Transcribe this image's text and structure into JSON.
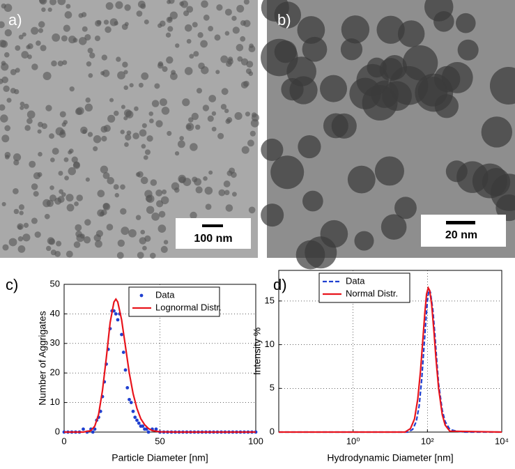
{
  "panels": [
    {
      "label": "a)",
      "scale_bar": "100 nm"
    },
    {
      "label": "b)",
      "scale_bar": "20 nm"
    }
  ],
  "chart_data": [
    {
      "type": "line",
      "panel_label": "c)",
      "xlabel": "Particle Diameter [nm]",
      "ylabel": "Number of Aggrigates",
      "xlim": [
        0,
        100
      ],
      "ylim": [
        0,
        50
      ],
      "xticks": [
        0,
        50,
        100
      ],
      "yticks": [
        0,
        10,
        20,
        30,
        40,
        50
      ],
      "grid": true,
      "legend": "upper right",
      "series": [
        {
          "name": "Data",
          "color": "#1f3fd0",
          "style": "markers",
          "x": [
            0,
            2,
            4,
            6,
            8,
            10,
            12,
            14,
            15,
            16,
            17,
            18,
            19,
            20,
            21,
            22,
            23,
            24,
            25,
            26,
            27,
            28,
            29,
            30,
            31,
            32,
            33,
            34,
            35,
            36,
            37,
            38,
            39,
            40,
            41,
            42,
            43,
            44,
            46,
            48,
            50,
            52,
            54,
            56,
            58,
            60,
            62,
            64,
            66,
            68,
            70,
            72,
            74,
            76,
            78,
            80,
            82,
            84,
            86,
            88,
            90,
            92,
            94,
            96,
            98,
            100
          ],
          "values": [
            0,
            0,
            0,
            0,
            0,
            1,
            0,
            1,
            0,
            1,
            4,
            5,
            7,
            12,
            17,
            23,
            28,
            35,
            41,
            41,
            40,
            38,
            40,
            33,
            27,
            21,
            15,
            11,
            10,
            7,
            5,
            4,
            3,
            2,
            2,
            1,
            1,
            0,
            1,
            1,
            0,
            0,
            0,
            0,
            0,
            0,
            0,
            0,
            0,
            0,
            0,
            0,
            0,
            0,
            0,
            0,
            0,
            0,
            0,
            0,
            0,
            0,
            0,
            0,
            0,
            0
          ]
        },
        {
          "name": "Lognormal Distr.",
          "color": "#e8141c",
          "style": "solid",
          "x": [
            0,
            10,
            14,
            16,
            18,
            20,
            22,
            24,
            26,
            27,
            28,
            30,
            32,
            34,
            36,
            38,
            40,
            42,
            44,
            46,
            50,
            60,
            100
          ],
          "values": [
            0,
            0,
            0.5,
            2,
            6,
            14,
            25,
            37,
            44,
            45,
            44,
            38,
            29,
            20,
            13,
            8,
            4.5,
            2.5,
            1.2,
            0.5,
            0.1,
            0,
            0
          ]
        }
      ]
    },
    {
      "type": "line",
      "panel_label": "d)",
      "xlabel": "Hydrodynamic Diameter [nm]",
      "ylabel": "Intensity %",
      "xscale": "log",
      "xlim": [
        0.01,
        10000
      ],
      "ylim": [
        0,
        18.5
      ],
      "xticks": [
        {
          "value": 1,
          "label": "10⁰"
        },
        {
          "value": 100,
          "label": "10²"
        },
        {
          "value": 10000,
          "label": "10⁴"
        }
      ],
      "yticks": [
        0,
        5,
        10,
        15
      ],
      "grid": true,
      "legend": "upper left",
      "series": [
        {
          "name": "Data",
          "color": "#1f3fd0",
          "style": "dashed",
          "x": [
            0.01,
            1,
            10,
            30,
            40,
            50,
            60,
            70,
            80,
            90,
            100,
            110,
            120,
            140,
            160,
            180,
            200,
            250,
            300,
            400,
            600,
            1000,
            10000
          ],
          "values": [
            0,
            0,
            0,
            0,
            0.3,
            1.2,
            3,
            6,
            9.5,
            12.5,
            15,
            16.3,
            16,
            14,
            11,
            8,
            5.5,
            2.5,
            1.2,
            0.3,
            0.1,
            0,
            0
          ]
        },
        {
          "name": "Normal Distr.",
          "color": "#e8141c",
          "style": "solid",
          "x": [
            0.01,
            1,
            10,
            25,
            35,
            45,
            55,
            65,
            75,
            85,
            95,
            105,
            115,
            130,
            150,
            170,
            200,
            250,
            300,
            400,
            10000
          ],
          "values": [
            0,
            0,
            0,
            0,
            0.4,
            1.5,
            3.8,
            7,
            10.5,
            13.6,
            15.8,
            16.5,
            16.2,
            14.6,
            11.5,
            8.4,
            5,
            2,
            0.8,
            0.1,
            0
          ]
        }
      ]
    }
  ]
}
